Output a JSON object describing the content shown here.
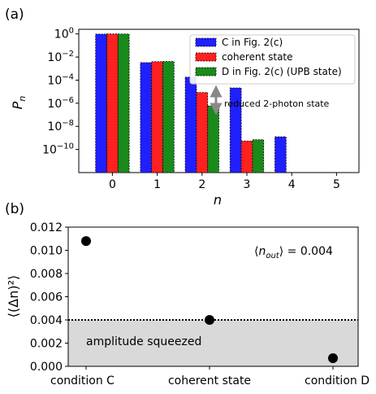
{
  "panels": {
    "a": "(a)",
    "b": "(b)"
  },
  "chart_data": [
    {
      "type": "bar",
      "yscale": "log",
      "xlabel": "n",
      "ylabel": "P",
      "ylabel_sub": "n",
      "categories": [
        "0",
        "1",
        "2",
        "3",
        "4",
        "5"
      ],
      "xlim": [
        -0.75,
        5.5
      ],
      "ylim_exp": [
        -12,
        0.4
      ],
      "ytick_exponents": [
        0,
        -2,
        -4,
        -6,
        -8,
        -10
      ],
      "ytick_base": "10",
      "series": [
        {
          "name": "C in Fig. 2(c)",
          "color": "#1f1fff",
          "values": [
            0.97,
            0.0033,
            0.00018,
            2.1e-05,
            1.25e-09,
            1e-14
          ]
        },
        {
          "name": "coherent state",
          "color": "#ff2020",
          "values": [
            0.996,
            0.004,
            8.5e-06,
            5.4e-10,
            5.5e-14,
            1e-14
          ]
        },
        {
          "name": "D in Fig. 2(c) (UPB state)",
          "color": "#1a8a1a",
          "values": [
            0.99,
            0.0041,
            5.8e-07,
            7e-10,
            7.3e-14,
            1e-14
          ]
        }
      ],
      "legend_position": "upper-right",
      "annotation": "reduced 2-photon state"
    },
    {
      "type": "scatter",
      "categories": [
        "condition C",
        "coherent state",
        "condition D"
      ],
      "ylabel": "⟨(Δn)²⟩",
      "ylim": [
        0,
        0.012
      ],
      "yticks": [
        "0.000",
        "0.002",
        "0.004",
        "0.006",
        "0.008",
        "0.010",
        "0.012"
      ],
      "values": [
        0.0108,
        0.004,
        0.0007
      ],
      "reference_line": 0.004,
      "annotation": "⟨n_out⟩ = 0.004",
      "shaded_region_label": "amplitude squeezed"
    }
  ]
}
